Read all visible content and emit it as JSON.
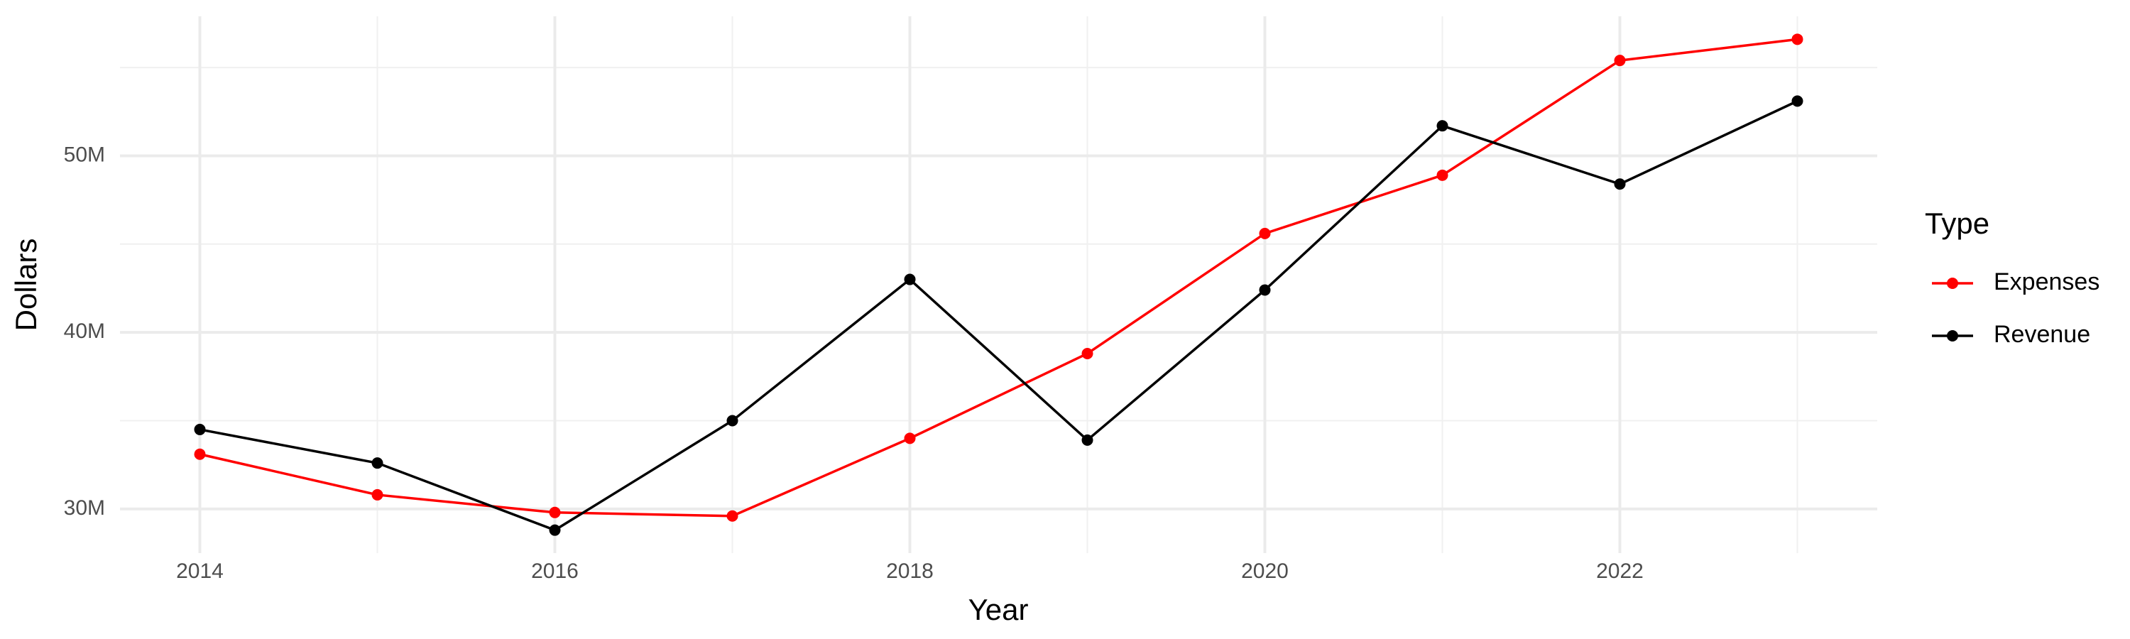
{
  "chart_data": {
    "type": "line",
    "x_label": "Year",
    "y_label": "Dollars",
    "x": [
      2014,
      2015,
      2016,
      2017,
      2018,
      2019,
      2020,
      2021,
      2022,
      2023
    ],
    "series": [
      {
        "name": "Expenses",
        "color": "#ff0000",
        "values": [
          33100000,
          30800000,
          29800000,
          29600000,
          34000000,
          38800000,
          45600000,
          48900000,
          55400000,
          56600000
        ]
      },
      {
        "name": "Revenue",
        "color": "#000000",
        "values": [
          34500000,
          32600000,
          28800000,
          35000000,
          43000000,
          33900000,
          42400000,
          51700000,
          48400000,
          53100000
        ]
      }
    ],
    "legend_title": "Type",
    "legend": "right",
    "xlim": [
      2013.55,
      2023.45
    ],
    "ylim": [
      27500000,
      57900000
    ],
    "xticks": [
      2014,
      2016,
      2018,
      2020,
      2022
    ],
    "yticks": [
      {
        "value": 30000000,
        "label": "30M"
      },
      {
        "value": 40000000,
        "label": "40M"
      },
      {
        "value": 50000000,
        "label": "50M"
      }
    ],
    "minor_xticks": [
      2015,
      2017,
      2019,
      2021,
      2023
    ],
    "minor_yticks": [
      35000000,
      45000000,
      55000000
    ],
    "grid": true
  }
}
